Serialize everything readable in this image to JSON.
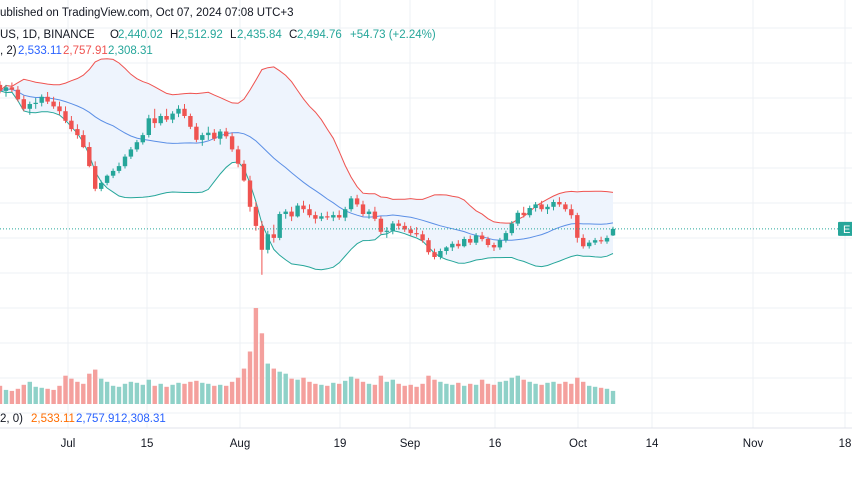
{
  "header": {
    "published": "ublished on TradingView.com, Oct 07, 2024 07:08 UTC+3",
    "symbol": "US, 1D, BINANCE",
    "o_label": "O",
    "o_value": "2,440.02",
    "h_label": "H",
    "h_value": "2,512.92",
    "l_label": "L",
    "l_value": "2,435.84",
    "c_label": "C",
    "c_value": "2,494.76",
    "change": "+54.73 (+2.24%)"
  },
  "bb_legend": {
    "prefix": ", 2)",
    "basis": "2,533.11",
    "upper": "2,757.91",
    "lower": "2,308.31"
  },
  "volume_legend": {
    "prefix": "2, 0)",
    "basis": "2,533.11",
    "upper": "2,757.91",
    "lower": "2,308.31"
  },
  "price_marker": {
    "label": "E"
  },
  "colors": {
    "up": "#26a69a",
    "down": "#ef5350",
    "vol_up": "#8fd1c8",
    "vol_down": "#f4a09d",
    "basis": "#5b8fe6",
    "upper": "#ef5350",
    "lower": "#26a69a",
    "band_fill": "#eef4fd",
    "grid": "#eef0f4",
    "text": "#131722",
    "legend_blue": "#2962ff"
  },
  "chart_data": {
    "type": "candlestick",
    "symbol": "US, 1D, BINANCE",
    "x_ticks": [
      "Jul",
      "15",
      "Aug",
      "19",
      "Sep",
      "16",
      "Oct",
      "14",
      "Nov",
      "18"
    ],
    "bollinger": {
      "basis": [
        2533
      ],
      "upper": [
        2758
      ],
      "lower": [
        2308
      ]
    },
    "last_bar": {
      "open": 2440.02,
      "high": 2512.92,
      "low": 2435.84,
      "close": 2494.76,
      "change": 54.73,
      "change_pct": 2.24
    },
    "ohlc": [
      [
        3700,
        3730,
        3630,
        3650
      ],
      [
        3650,
        3700,
        3600,
        3680
      ],
      [
        3680,
        3720,
        3640,
        3660
      ],
      [
        3660,
        3690,
        3560,
        3580
      ],
      [
        3580,
        3610,
        3480,
        3500
      ],
      [
        3500,
        3560,
        3450,
        3540
      ],
      [
        3540,
        3590,
        3500,
        3550
      ],
      [
        3550,
        3620,
        3520,
        3600
      ],
      [
        3600,
        3640,
        3540,
        3560
      ],
      [
        3560,
        3600,
        3500,
        3520
      ],
      [
        3520,
        3560,
        3450,
        3480
      ],
      [
        3480,
        3520,
        3380,
        3400
      ],
      [
        3400,
        3440,
        3310,
        3330
      ],
      [
        3330,
        3370,
        3250,
        3280
      ],
      [
        3280,
        3320,
        3170,
        3180
      ],
      [
        3180,
        3220,
        3010,
        3020
      ],
      [
        3020,
        3060,
        2810,
        2830
      ],
      [
        2830,
        2900,
        2810,
        2880
      ],
      [
        2880,
        2950,
        2860,
        2940
      ],
      [
        2940,
        3000,
        2920,
        2980
      ],
      [
        2980,
        3050,
        2960,
        3020
      ],
      [
        3020,
        3120,
        3000,
        3100
      ],
      [
        3100,
        3180,
        3080,
        3160
      ],
      [
        3160,
        3240,
        3140,
        3220
      ],
      [
        3220,
        3300,
        3200,
        3280
      ],
      [
        3280,
        3450,
        3260,
        3420
      ],
      [
        3420,
        3500,
        3340,
        3380
      ],
      [
        3380,
        3460,
        3360,
        3440
      ],
      [
        3440,
        3500,
        3390,
        3410
      ],
      [
        3410,
        3480,
        3380,
        3460
      ],
      [
        3460,
        3530,
        3430,
        3500
      ],
      [
        3500,
        3540,
        3420,
        3440
      ],
      [
        3440,
        3460,
        3330,
        3350
      ],
      [
        3350,
        3380,
        3220,
        3240
      ],
      [
        3240,
        3300,
        3190,
        3280
      ],
      [
        3280,
        3350,
        3240,
        3300
      ],
      [
        3300,
        3330,
        3230,
        3250
      ],
      [
        3250,
        3330,
        3200,
        3310
      ],
      [
        3310,
        3340,
        3250,
        3270
      ],
      [
        3270,
        3300,
        3140,
        3160
      ],
      [
        3160,
        3190,
        3010,
        3040
      ],
      [
        3040,
        3070,
        2890,
        2900
      ],
      [
        2900,
        2940,
        2640,
        2680
      ],
      [
        2680,
        2720,
        2480,
        2520
      ],
      [
        2520,
        2560,
        2111,
        2320
      ],
      [
        2320,
        2480,
        2290,
        2450
      ],
      [
        2450,
        2530,
        2380,
        2420
      ],
      [
        2420,
        2640,
        2400,
        2620
      ],
      [
        2620,
        2660,
        2580,
        2640
      ],
      [
        2640,
        2680,
        2560,
        2600
      ],
      [
        2600,
        2710,
        2590,
        2690
      ],
      [
        2690,
        2730,
        2630,
        2660
      ],
      [
        2660,
        2700,
        2590,
        2610
      ],
      [
        2610,
        2640,
        2540,
        2580
      ],
      [
        2580,
        2630,
        2560,
        2600
      ],
      [
        2600,
        2640,
        2570,
        2590
      ],
      [
        2590,
        2640,
        2560,
        2610
      ],
      [
        2610,
        2650,
        2570,
        2590
      ],
      [
        2590,
        2680,
        2560,
        2660
      ],
      [
        2660,
        2770,
        2640,
        2750
      ],
      [
        2750,
        2780,
        2680,
        2700
      ],
      [
        2700,
        2730,
        2600,
        2620
      ],
      [
        2620,
        2660,
        2580,
        2640
      ],
      [
        2640,
        2680,
        2560,
        2580
      ],
      [
        2580,
        2600,
        2450,
        2470
      ],
      [
        2470,
        2510,
        2420,
        2480
      ],
      [
        2480,
        2560,
        2450,
        2540
      ],
      [
        2540,
        2570,
        2490,
        2520
      ],
      [
        2520,
        2550,
        2470,
        2490
      ],
      [
        2490,
        2520,
        2440,
        2460
      ],
      [
        2460,
        2510,
        2430,
        2450
      ],
      [
        2450,
        2480,
        2380,
        2400
      ],
      [
        2400,
        2420,
        2280,
        2300
      ],
      [
        2300,
        2330,
        2240,
        2260
      ],
      [
        2260,
        2330,
        2240,
        2310
      ],
      [
        2310,
        2350,
        2280,
        2340
      ],
      [
        2340,
        2390,
        2310,
        2370
      ],
      [
        2370,
        2400,
        2330,
        2350
      ],
      [
        2350,
        2430,
        2340,
        2410
      ],
      [
        2410,
        2440,
        2360,
        2380
      ],
      [
        2380,
        2460,
        2360,
        2440
      ],
      [
        2440,
        2470,
        2390,
        2410
      ],
      [
        2410,
        2430,
        2340,
        2360
      ],
      [
        2360,
        2380,
        2310,
        2340
      ],
      [
        2340,
        2420,
        2320,
        2400
      ],
      [
        2400,
        2480,
        2380,
        2460
      ],
      [
        2460,
        2560,
        2440,
        2540
      ],
      [
        2540,
        2650,
        2520,
        2630
      ],
      [
        2630,
        2680,
        2590,
        2610
      ],
      [
        2610,
        2690,
        2590,
        2670
      ],
      [
        2670,
        2720,
        2640,
        2700
      ],
      [
        2700,
        2730,
        2640,
        2660
      ],
      [
        2660,
        2700,
        2620,
        2680
      ],
      [
        2680,
        2740,
        2650,
        2720
      ],
      [
        2720,
        2760,
        2680,
        2700
      ],
      [
        2700,
        2720,
        2640,
        2660
      ],
      [
        2660,
        2700,
        2580,
        2610
      ],
      [
        2610,
        2630,
        2380,
        2420
      ],
      [
        2420,
        2450,
        2330,
        2350
      ],
      [
        2350,
        2400,
        2330,
        2380
      ],
      [
        2380,
        2420,
        2360,
        2400
      ],
      [
        2400,
        2430,
        2370,
        2390
      ],
      [
        2390,
        2440,
        2370,
        2420
      ],
      [
        2440.02,
        2512.92,
        2435.84,
        2494.76
      ]
    ],
    "volume": [
      18,
      14,
      13,
      15,
      19,
      22,
      17,
      16,
      15,
      14,
      18,
      28,
      25,
      22,
      20,
      30,
      34,
      25,
      22,
      18,
      17,
      20,
      22,
      21,
      19,
      24,
      18,
      20,
      17,
      19,
      21,
      20,
      22,
      23,
      21,
      20,
      18,
      19,
      18,
      22,
      26,
      35,
      52,
      95,
      70,
      40,
      35,
      32,
      30,
      25,
      24,
      26,
      22,
      20,
      19,
      18,
      21,
      20,
      23,
      27,
      25,
      22,
      20,
      19,
      28,
      22,
      24,
      20,
      18,
      19,
      17,
      20,
      28,
      24,
      22,
      20,
      19,
      21,
      18,
      20,
      19,
      24,
      20,
      19,
      22,
      23,
      26,
      28,
      24,
      22,
      20,
      19,
      21,
      22,
      20,
      22,
      20,
      26,
      22,
      18,
      17,
      16,
      15,
      13
    ]
  }
}
